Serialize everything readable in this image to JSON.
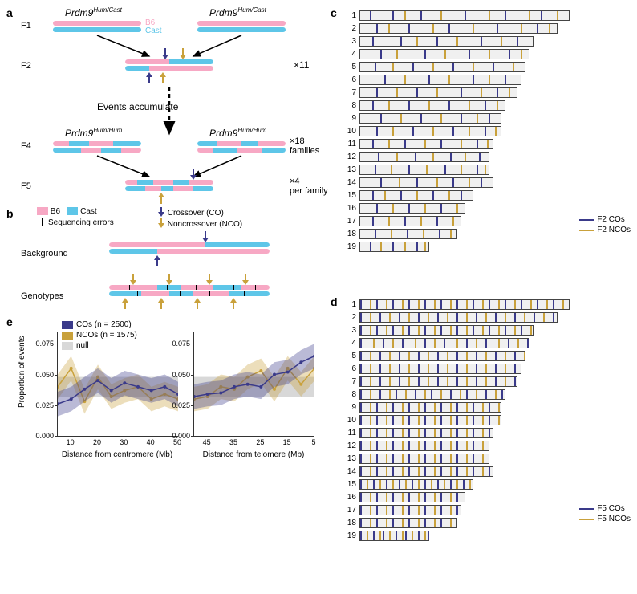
{
  "colors": {
    "b6": "#f7a8c4",
    "cast": "#5ec6e8",
    "co": "#3a3a8a",
    "nco": "#c9a13b",
    "seq_err": "#000000",
    "null_band": "#d8d8d8",
    "co_fill": "rgba(58,58,138,0.35)",
    "nco_fill": "rgba(201,161,59,0.35)",
    "chr_bg": "#f0f0f0"
  },
  "panel_a": {
    "labels": {
      "F1": "F1",
      "F2": "F2",
      "F4": "F4",
      "F5": "F5",
      "prdm9_het": "Prdm9",
      "prdm9_het_sup": "Hum/Cast",
      "prdm9_hom": "Prdm9",
      "prdm9_hom_sup": "Hum/Hum",
      "x11": "×11",
      "events": "Events accumulate",
      "x18": "×18\nfamilies",
      "x4": "×4\nper family"
    }
  },
  "panel_b": {
    "legend": {
      "b6": "B6",
      "cast": "Cast",
      "co": "Crossover (CO)",
      "seq": "Sequencing errors",
      "nco": "Noncrossover (NCO)"
    },
    "labels": {
      "background": "Background",
      "genotypes": "Genotypes"
    }
  },
  "panel_c": {
    "title_legend": {
      "co": "F2 COs",
      "nco": "F2 NCOs"
    },
    "chromosomes": [
      {
        "n": 1,
        "len": 260,
        "co": [
          12,
          40,
          75,
          130,
          180,
          225
        ],
        "nco": [
          55,
          100,
          160,
          210,
          245
        ]
      },
      {
        "n": 2,
        "len": 245,
        "co": [
          20,
          60,
          110,
          170,
          220
        ],
        "nco": [
          35,
          90,
          140,
          200,
          235
        ]
      },
      {
        "n": 3,
        "len": 215,
        "co": [
          15,
          50,
          95,
          150,
          195
        ],
        "nco": [
          70,
          120,
          175
        ]
      },
      {
        "n": 4,
        "len": 210,
        "co": [
          25,
          80,
          135,
          185
        ],
        "nco": [
          45,
          105,
          160,
          200
        ]
      },
      {
        "n": 5,
        "len": 205,
        "co": [
          18,
          65,
          115,
          165
        ],
        "nco": [
          40,
          90,
          140,
          190
        ]
      },
      {
        "n": 6,
        "len": 200,
        "co": [
          30,
          85,
          140,
          180
        ],
        "nco": [
          55,
          110,
          160
        ]
      },
      {
        "n": 7,
        "len": 195,
        "co": [
          20,
          70,
          125,
          170
        ],
        "nco": [
          45,
          95,
          150,
          185
        ]
      },
      {
        "n": 8,
        "len": 180,
        "co": [
          15,
          60,
          110,
          155
        ],
        "nco": [
          35,
          85,
          135,
          170
        ]
      },
      {
        "n": 9,
        "len": 175,
        "co": [
          25,
          75,
          125,
          160
        ],
        "nco": [
          50,
          100,
          145
        ]
      },
      {
        "n": 10,
        "len": 175,
        "co": [
          20,
          65,
          115,
          155
        ],
        "nco": [
          40,
          90,
          135,
          168
        ]
      },
      {
        "n": 11,
        "len": 165,
        "co": [
          15,
          55,
          100,
          145
        ],
        "nco": [
          35,
          80,
          125,
          158
        ]
      },
      {
        "n": 12,
        "len": 160,
        "co": [
          22,
          68,
          112,
          148
        ],
        "nco": [
          45,
          90,
          130
        ]
      },
      {
        "n": 13,
        "len": 160,
        "co": [
          18,
          60,
          105,
          145
        ],
        "nco": [
          38,
          82,
          125,
          155
        ]
      },
      {
        "n": 14,
        "len": 165,
        "co": [
          25,
          70,
          115,
          150
        ],
        "nco": [
          48,
          95,
          135
        ]
      },
      {
        "n": 15,
        "len": 140,
        "co": [
          15,
          50,
          90,
          125
        ],
        "nco": [
          30,
          70,
          110
        ]
      },
      {
        "n": 16,
        "len": 130,
        "co": [
          20,
          60,
          100
        ],
        "nco": [
          40,
          80,
          120
        ]
      },
      {
        "n": 17,
        "len": 125,
        "co": [
          15,
          55,
          95
        ],
        "nco": [
          35,
          75,
          115
        ]
      },
      {
        "n": 18,
        "len": 120,
        "co": [
          18,
          58,
          98
        ],
        "nco": [
          38,
          78,
          112
        ]
      },
      {
        "n": 19,
        "len": 85,
        "co": [
          12,
          40,
          70
        ],
        "nco": [
          25,
          55,
          80
        ]
      }
    ]
  },
  "panel_d": {
    "title_legend": {
      "co": "F5 COs",
      "nco": "F5 NCOs"
    },
    "density_multiplier": 4
  },
  "panel_e": {
    "legend": {
      "co": "COs (n = 2500)",
      "nco": "NCOs (n = 1575)",
      "null": "null"
    },
    "ylabel": "Proportion of events",
    "xlabels": [
      "Distance from centromere (Mb)",
      "Distance from telomere (Mb)"
    ],
    "yticks": [
      0.0,
      0.025,
      0.05,
      0.075
    ],
    "ylim": [
      0,
      0.085
    ],
    "left_x": [
      5,
      10,
      15,
      20,
      25,
      30,
      35,
      40,
      45,
      50
    ],
    "right_x": [
      50,
      45,
      40,
      35,
      30,
      25,
      20,
      15,
      10,
      5
    ],
    "null_band": [
      0.032,
      0.048
    ],
    "left": {
      "co": [
        0.026,
        0.03,
        0.038,
        0.045,
        0.037,
        0.043,
        0.04,
        0.037,
        0.04,
        0.034
      ],
      "nco": [
        0.04,
        0.055,
        0.028,
        0.048,
        0.032,
        0.037,
        0.04,
        0.03,
        0.034,
        0.03
      ]
    },
    "right": {
      "co": [
        0.032,
        0.034,
        0.035,
        0.04,
        0.042,
        0.04,
        0.05,
        0.052,
        0.06,
        0.065
      ],
      "nco": [
        0.03,
        0.032,
        0.04,
        0.038,
        0.048,
        0.053,
        0.038,
        0.055,
        0.042,
        0.055
      ]
    },
    "band_halfwidth": 0.01
  }
}
